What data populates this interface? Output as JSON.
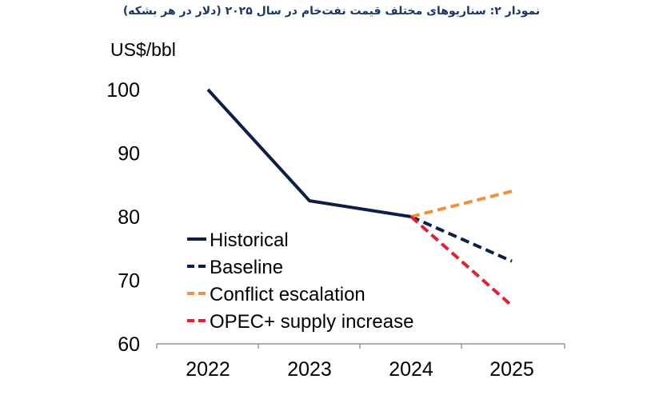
{
  "figure_title": "نمودار ۲: سناریوهای مختلف قیمت نفت‌خام در سال ۲۰۲۵ (دلار در هر بشکه)",
  "chart_data": {
    "type": "line",
    "title": "نمودار ۲: سناریوهای مختلف قیمت نفت‌خام در سال ۲۰۲۵ (دلار در هر بشکه)",
    "ylabel": "US$/bbl",
    "xlabel": "",
    "categories": [
      "2022",
      "2023",
      "2024",
      "2025"
    ],
    "ylim": [
      60,
      100
    ],
    "yticks": [
      "100",
      "90",
      "80",
      "70",
      "60"
    ],
    "grid": false,
    "legend_position": "bottom-left",
    "series": [
      {
        "name": "Historical",
        "color": "#0d1f45",
        "dash": "solid",
        "x": [
          "2022",
          "2023",
          "2024"
        ],
        "values": [
          100,
          82.5,
          80
        ]
      },
      {
        "name": "Baseline",
        "color": "#0d1f45",
        "dash": "dashed",
        "x": [
          "2024",
          "2025"
        ],
        "values": [
          80,
          73
        ]
      },
      {
        "name": "Conflict escalation",
        "color": "#f0923a",
        "dash": "dashed",
        "x": [
          "2024",
          "2025"
        ],
        "values": [
          80,
          84
        ]
      },
      {
        "name": "OPEC+ supply increase",
        "color": "#e02033",
        "dash": "dashed",
        "x": [
          "2024",
          "2025"
        ],
        "values": [
          80,
          66
        ]
      }
    ]
  }
}
